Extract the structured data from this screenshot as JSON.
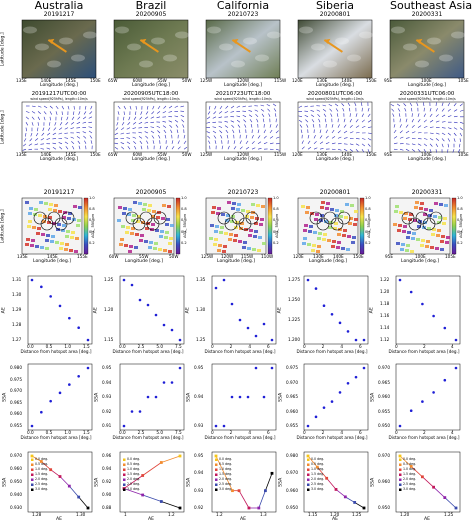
{
  "columns": [
    {
      "region": "Australia",
      "sat_date": "20191217",
      "wind_title": "20191217UTC00:00",
      "aerosol_date": "20191217",
      "sat_lon_ticks": [
        "135E",
        "140E",
        "145E",
        "150E"
      ],
      "wind_lon_ticks": [
        "135E",
        "140E",
        "145E",
        "150E"
      ],
      "map_lat_ticks": [
        "25S",
        "30S",
        "35S",
        "40S"
      ],
      "map_lon_ticks": [
        "135E",
        "145E",
        "155E"
      ],
      "sat_colors": [
        "#3d4a2f",
        "#6a6a4e",
        "#2c4f7a"
      ],
      "ae_ticks": [
        "1.27",
        "1.28",
        "1.29",
        "1.30",
        "1.31"
      ],
      "dist_ticks": [
        "0.0",
        "0.5",
        "1.0",
        "1.5"
      ],
      "ssa_ticks": [
        "0.955",
        "0.960",
        "0.965",
        "0.970",
        "0.975",
        "0.980"
      ],
      "bottom_x_ticks": [
        "1.28",
        "1.30"
      ],
      "bottom_y_ticks": [
        "0.930",
        "0.940",
        "0.950",
        "0.960",
        "0.970"
      ]
    },
    {
      "region": "Brazil",
      "sat_date": "20200905",
      "wind_title": "20200905UTC18:00",
      "aerosol_date": "20200905",
      "sat_lon_ticks": [
        "65W",
        "60W",
        "55W",
        "50W"
      ],
      "wind_lon_ticks": [
        "65W",
        "60W",
        "55W",
        "50W"
      ],
      "map_lat_ticks": [
        "5S",
        "10S",
        "15S",
        "20S"
      ],
      "map_lon_ticks": [
        "60W",
        "55W",
        "50W"
      ],
      "sat_colors": [
        "#4a5b37",
        "#6e7a52",
        "#8b8d6a"
      ],
      "ae_ticks": [
        "1.15",
        "1.20",
        "1.25"
      ],
      "dist_ticks": [
        "0.0",
        "2.5",
        "5.0",
        "7.5"
      ],
      "ssa_ticks": [
        "0.91",
        "0.92",
        "0.93",
        "0.94",
        "0.95"
      ],
      "bottom_x_ticks": [
        "1",
        "1.2"
      ],
      "bottom_y_ticks": [
        "0.88",
        "0.90",
        "0.92",
        "0.94",
        "0.96"
      ]
    },
    {
      "region": "California",
      "sat_date": "20210723",
      "wind_title": "20210723UTC18:00",
      "aerosol_date": "20210723",
      "sat_lon_ticks": [
        "125W",
        "120W",
        "115W"
      ],
      "wind_lon_ticks": [
        "125W",
        "120W",
        "115W"
      ],
      "map_lat_ticks": [
        "35N",
        "40N",
        "45N",
        "50N"
      ],
      "map_lon_ticks": [
        "125W",
        "120W",
        "115W",
        "110W"
      ],
      "sat_colors": [
        "#596a48",
        "#b8c2c9",
        "#6f7e55"
      ],
      "ae_ticks": [
        "1.25",
        "1.30",
        "1.35"
      ],
      "dist_ticks": [
        "0",
        "2",
        "4",
        "6"
      ],
      "ssa_ticks": [
        "0.93",
        "0.94",
        "0.95"
      ],
      "bottom_x_ticks": [
        "1.2",
        "1.3"
      ],
      "bottom_y_ticks": [
        "0.92",
        "0.93",
        "0.94",
        "0.95"
      ]
    },
    {
      "region": "Siberia",
      "sat_date": "20200801",
      "wind_title": "20200801UTC06:00",
      "aerosol_date": "20200801",
      "sat_lon_ticks": [
        "120E",
        "130E",
        "140E",
        "150E"
      ],
      "wind_lon_ticks": [
        "120E",
        "130E",
        "140E",
        "150E"
      ],
      "map_lat_ticks": [
        "55N",
        "60N",
        "65N",
        "70N"
      ],
      "map_lon_ticks": [
        "120E",
        "130E",
        "140E",
        "150E"
      ],
      "sat_colors": [
        "#3f4a34",
        "#d9dde2",
        "#7a6b4e"
      ],
      "ae_ticks": [
        "1.200",
        "1.225",
        "1.250",
        "1.275"
      ],
      "dist_ticks": [
        "0",
        "2",
        "4",
        "6"
      ],
      "ssa_ticks": [
        "0.955",
        "0.960",
        "0.965",
        "0.970",
        "0.975"
      ],
      "bottom_x_ticks": [
        "1.15",
        "1.20",
        "1.25"
      ],
      "bottom_y_ticks": [
        "0.950",
        "0.960",
        "0.970",
        "0.980"
      ]
    },
    {
      "region": "Southeast Asia",
      "sat_date": "20200331",
      "wind_title": "20200331UTC06:00",
      "aerosol_date": "20200331",
      "sat_lon_ticks": [
        "95E",
        "100E",
        "105E"
      ],
      "wind_lon_ticks": [
        "95E",
        "100E",
        "105E"
      ],
      "map_lat_ticks": [
        "10N",
        "15N",
        "20N",
        "25N"
      ],
      "map_lon_ticks": [
        "95E",
        "100E",
        "105E"
      ],
      "sat_colors": [
        "#4a5a3a",
        "#8a8a6b",
        "#3f5a86"
      ],
      "ae_ticks": [
        "1.12",
        "1.14",
        "1.16",
        "1.18",
        "1.20",
        "1.22"
      ],
      "dist_ticks": [
        "0",
        "2",
        "4"
      ],
      "ssa_ticks": [
        "0.950",
        "0.955",
        "0.960",
        "0.965",
        "0.970"
      ],
      "bottom_x_ticks": [
        "1.20",
        "1.25"
      ],
      "bottom_y_ticks": [
        "0.950",
        "0.960",
        "0.970"
      ]
    }
  ],
  "axis_labels": {
    "latitude": "Latitude [deg.]",
    "longitude": "Longitude [deg.]",
    "ae": "AE",
    "ssa": "SSA",
    "distance": "Distance from hotspot area [deg.]",
    "ae_bottom": "AE",
    "aot": "AOT_ 550 nm"
  },
  "wind_header": "wind speed(925hPa), length=10m/s",
  "colorbar_ticks": [
    "0.2",
    "0.4",
    "0.6",
    "0.8",
    "1.0"
  ],
  "legend_bottom": [
    "0.0 deg.",
    "0.5 deg.",
    "1.0 deg.",
    "1.5 deg.",
    "2.0 deg.",
    "2.5 deg.",
    "3.0 deg."
  ],
  "colors": {
    "points": "#1f1fd6",
    "arrow": "#e8961e",
    "wind": "#2b2bb8"
  },
  "chart_data": [
    {
      "type": "scatter",
      "panel": "AE vs distance",
      "series": [
        {
          "x": [
            0.0,
            0.25,
            0.5,
            0.75,
            1.0,
            1.25,
            1.5
          ],
          "y": [
            1.312,
            1.307,
            1.3,
            1.293,
            1.284,
            1.277,
            1.268
          ]
        },
        {
          "x": [
            0.0,
            1.0,
            2.0,
            3.0,
            4.0,
            5.0,
            6.0,
            7.0
          ],
          "y": [
            1.27,
            1.26,
            1.23,
            1.22,
            1.2,
            1.18,
            1.17,
            1.15
          ]
        },
        {
          "x": [
            0,
            1,
            2,
            3,
            4,
            5,
            6,
            7
          ],
          "y": [
            1.35,
            1.37,
            1.31,
            1.27,
            1.25,
            1.23,
            1.26,
            1.22
          ]
        },
        {
          "x": [
            0,
            1,
            2,
            3,
            4,
            5,
            6,
            7
          ],
          "y": [
            1.27,
            1.26,
            1.24,
            1.23,
            1.22,
            1.21,
            1.2,
            1.2
          ]
        },
        {
          "x": [
            0,
            1,
            2,
            3,
            4,
            5
          ],
          "y": [
            1.22,
            1.2,
            1.18,
            1.16,
            1.14,
            1.12
          ]
        }
      ]
    },
    {
      "type": "scatter",
      "panel": "SSA vs distance",
      "series": [
        {
          "x": [
            0.0,
            0.25,
            0.5,
            0.75,
            1.0,
            1.25,
            1.5
          ],
          "y": [
            0.958,
            0.963,
            0.967,
            0.97,
            0.973,
            0.976,
            0.979
          ]
        },
        {
          "x": [
            0.0,
            1.0,
            2.0,
            3.0,
            4.0,
            5.0,
            6.0,
            7.0
          ],
          "y": [
            0.91,
            0.92,
            0.92,
            0.93,
            0.93,
            0.94,
            0.94,
            0.95
          ]
        },
        {
          "x": [
            0,
            1,
            2,
            3,
            4,
            5,
            6,
            7
          ],
          "y": [
            0.93,
            0.93,
            0.94,
            0.94,
            0.94,
            0.95,
            0.94,
            0.95
          ]
        },
        {
          "x": [
            0,
            1,
            2,
            3,
            4,
            5,
            6,
            7
          ],
          "y": [
            0.955,
            0.958,
            0.961,
            0.963,
            0.966,
            0.969,
            0.971,
            0.974
          ]
        },
        {
          "x": [
            0,
            1,
            2,
            3,
            4,
            5
          ],
          "y": [
            0.95,
            0.955,
            0.958,
            0.961,
            0.965,
            0.969
          ]
        }
      ]
    },
    {
      "type": "line",
      "panel": "SSA vs AE",
      "series": [
        {
          "x": [
            1.275,
            1.28,
            1.285,
            1.29,
            1.295,
            1.3,
            1.305
          ],
          "y": [
            0.97,
            0.966,
            0.96,
            0.955,
            0.948,
            0.94,
            0.932
          ]
        },
        {
          "x": [
            1.2,
            1.15,
            1.1,
            1.05,
            1.1,
            1.15,
            1.2
          ],
          "y": [
            0.96,
            0.95,
            0.93,
            0.91,
            0.9,
            0.89,
            0.88
          ]
        },
        {
          "x": [
            1.15,
            1.2,
            1.22,
            1.25,
            1.28,
            1.3,
            1.32
          ],
          "y": [
            0.95,
            0.93,
            0.93,
            0.92,
            0.92,
            0.93,
            0.94
          ]
        },
        {
          "x": [
            1.15,
            1.17,
            1.19,
            1.21,
            1.23,
            1.25,
            1.27
          ],
          "y": [
            0.978,
            0.972,
            0.966,
            0.96,
            0.956,
            0.953,
            0.95
          ]
        },
        {
          "x": [
            1.18,
            1.2,
            1.22,
            1.24,
            1.26,
            1.28
          ],
          "y": [
            0.97,
            0.966,
            0.962,
            0.958,
            0.954,
            0.95
          ]
        }
      ]
    }
  ]
}
